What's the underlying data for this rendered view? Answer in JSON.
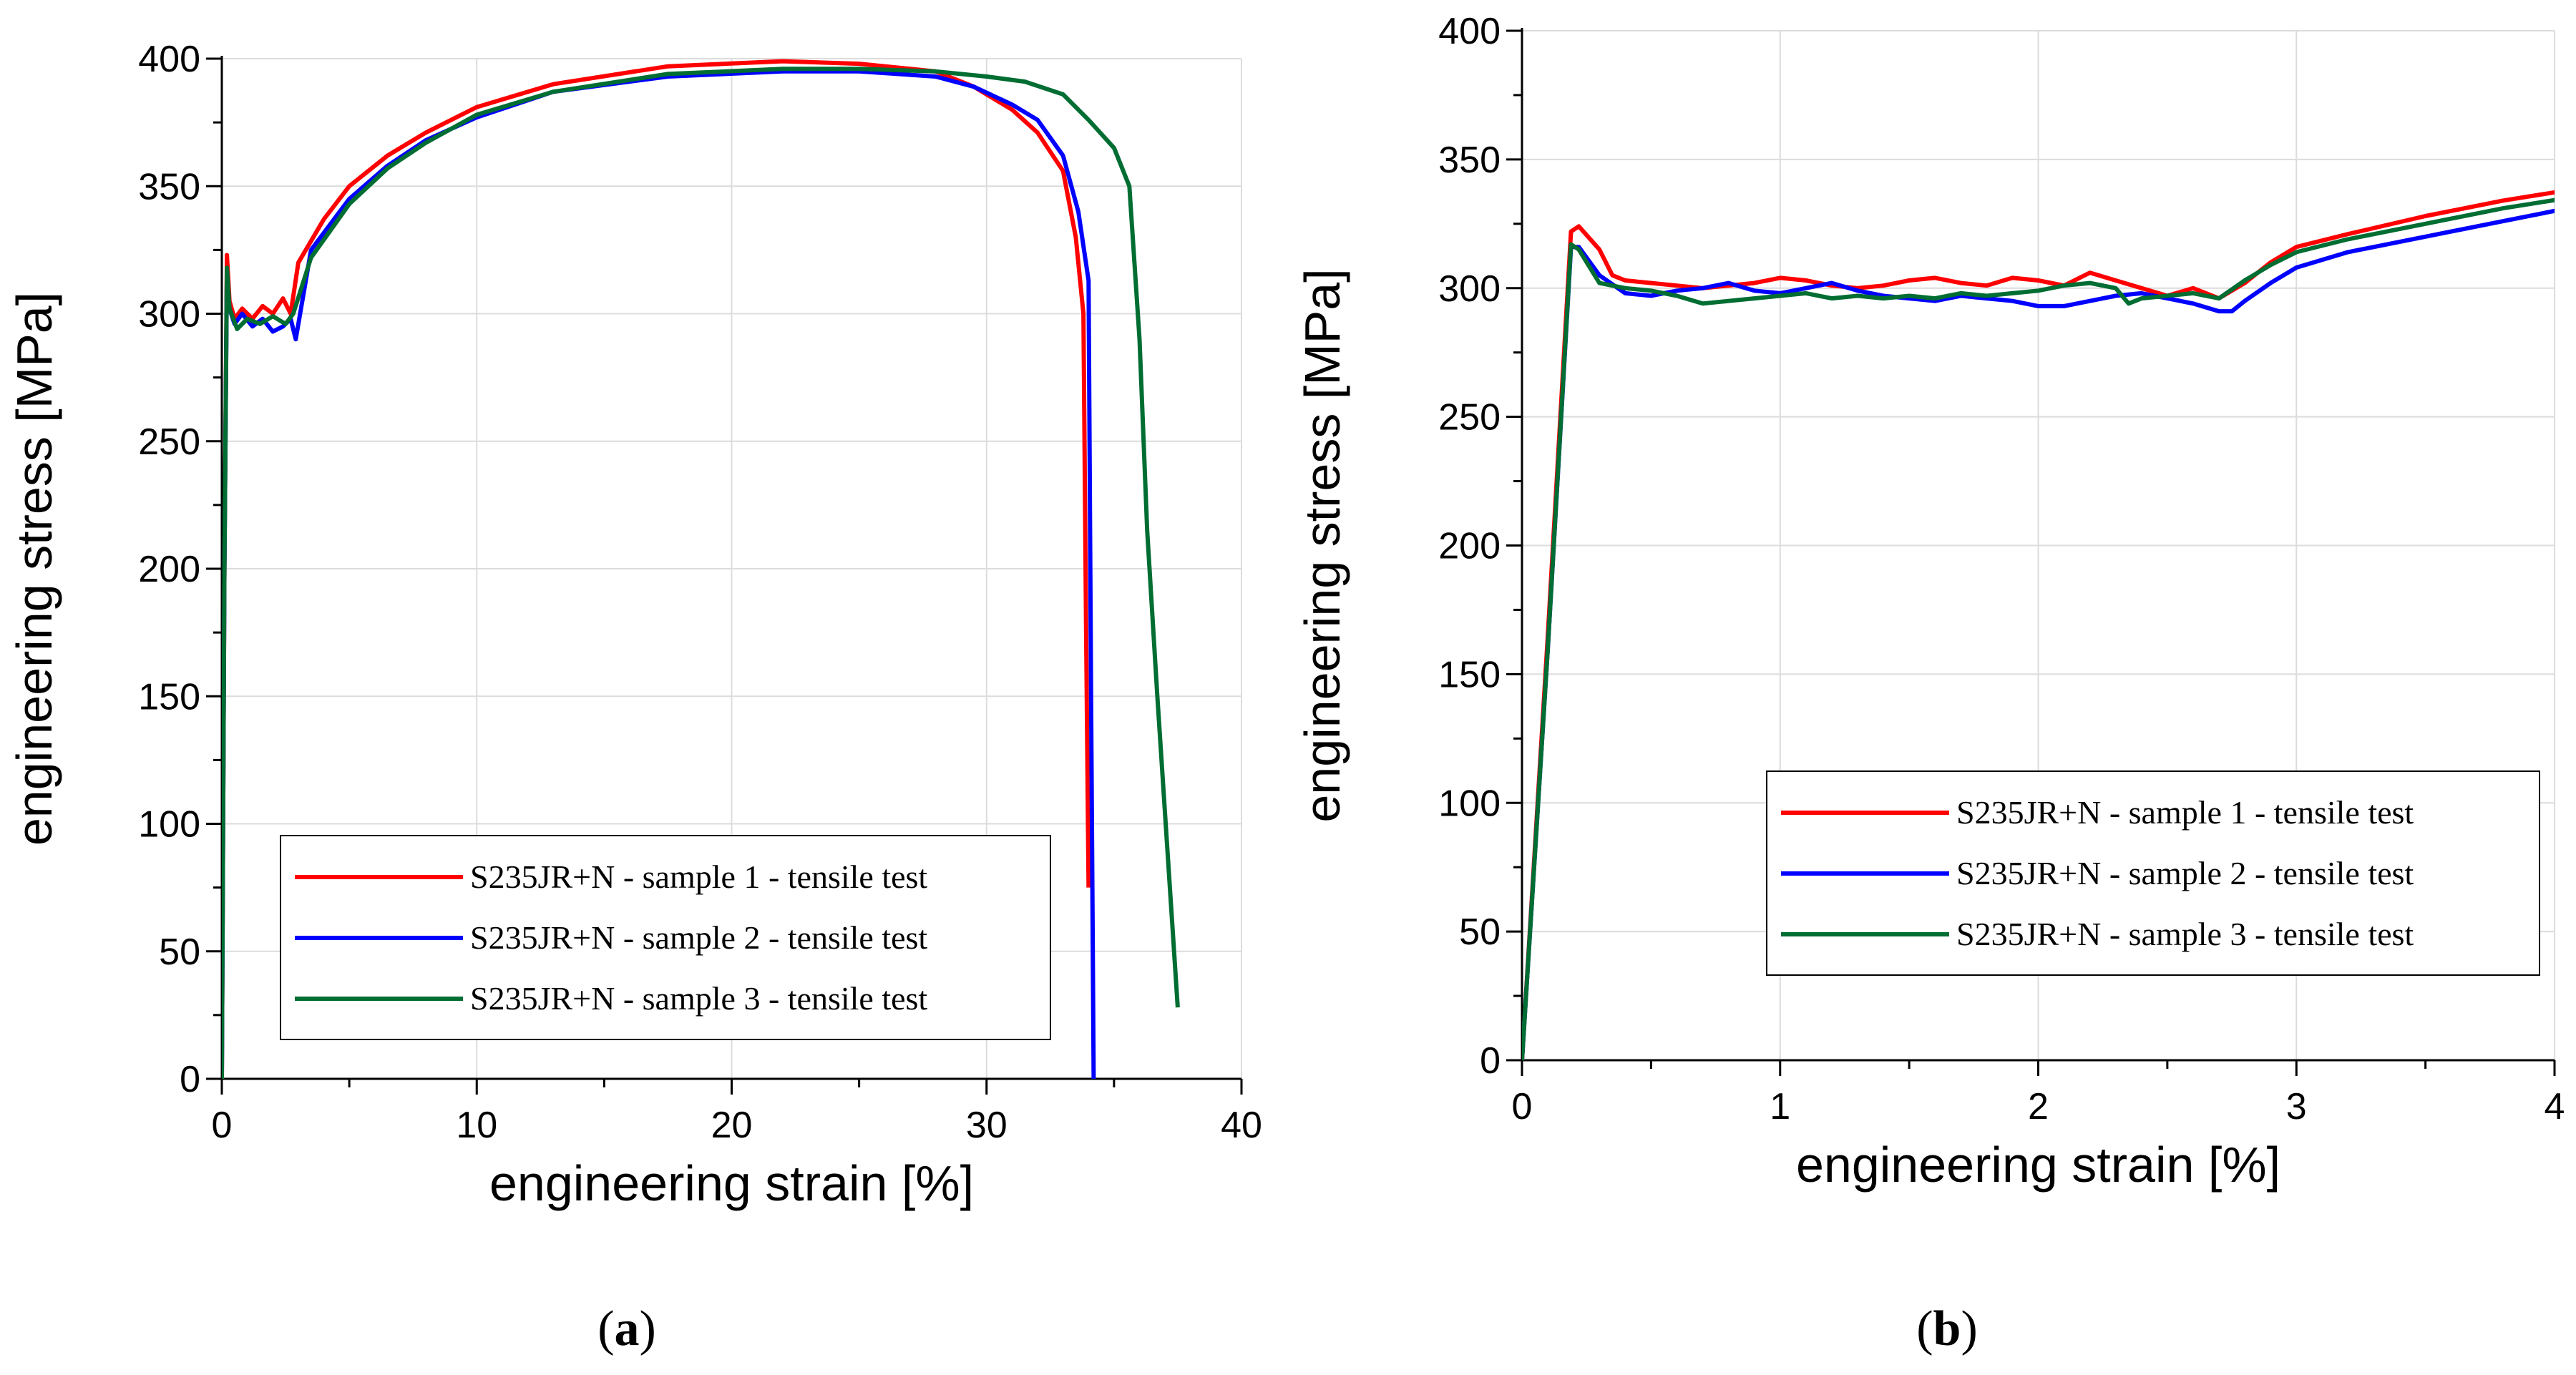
{
  "colors": {
    "sample1": "#ff0000",
    "sample2": "#0000ff",
    "sample3": "#006d32",
    "grid": "#dcdcdc",
    "axis": "#000000"
  },
  "chart_data": [
    {
      "type": "line",
      "caption_prefix": "(",
      "caption_letter": "a",
      "caption_suffix": ")",
      "xlabel": "engineering strain [%]",
      "ylabel": "engineering stress [MPa]",
      "xlim": [
        0,
        40
      ],
      "ylim": [
        0,
        400
      ],
      "xticks": [
        0,
        10,
        20,
        30,
        40
      ],
      "yticks": [
        0,
        50,
        100,
        150,
        200,
        250,
        300,
        350,
        400
      ],
      "grid": true,
      "legend_position": "bottom-center",
      "series": [
        {
          "name": "S235JR+N - sample 1 - tensile test",
          "x": [
            0,
            0.1,
            0.2,
            0.3,
            0.5,
            0.8,
            1.2,
            1.6,
            2.0,
            2.4,
            2.7,
            3.0,
            4.0,
            5.0,
            6.5,
            8.0,
            10.0,
            13.0,
            17.5,
            22.0,
            25.0,
            28.0,
            29.5,
            31.0,
            32.0,
            33.0,
            33.5,
            33.8,
            33.9,
            34.0
          ],
          "y": [
            0,
            200,
            323,
            305,
            298,
            302,
            298,
            303,
            300,
            306,
            300,
            320,
            337,
            350,
            362,
            371,
            381,
            390,
            397,
            399,
            398,
            395,
            389,
            380,
            371,
            356,
            330,
            300,
            180,
            75
          ]
        },
        {
          "name": "S235JR+N - sample 2 - tensile test",
          "x": [
            0,
            0.1,
            0.2,
            0.3,
            0.5,
            0.8,
            1.2,
            1.6,
            2.0,
            2.4,
            2.7,
            2.9,
            3.5,
            5.0,
            6.5,
            8.0,
            10.0,
            13.0,
            17.5,
            22.0,
            25.0,
            28.0,
            29.5,
            31.0,
            32.0,
            33.0,
            33.6,
            34.0,
            34.1,
            34.2
          ],
          "y": [
            0,
            200,
            316,
            302,
            296,
            300,
            295,
            298,
            293,
            295,
            298,
            290,
            325,
            345,
            358,
            368,
            377,
            387,
            393,
            395,
            395,
            393,
            389,
            382,
            376,
            362,
            340,
            313,
            150,
            0
          ]
        },
        {
          "name": "S235JR+N - sample 3 - tensile test",
          "x": [
            0,
            0.1,
            0.2,
            0.3,
            0.6,
            1.0,
            1.5,
            2.0,
            2.5,
            2.8,
            3.5,
            5.0,
            6.5,
            8.0,
            10.0,
            13.0,
            17.5,
            22.0,
            25.0,
            28.0,
            30.0,
            31.5,
            33.0,
            34.0,
            35.0,
            35.6,
            36.0,
            36.3,
            36.7,
            37.5
          ],
          "y": [
            0,
            200,
            318,
            302,
            294,
            298,
            296,
            299,
            296,
            300,
            322,
            343,
            357,
            367,
            378,
            387,
            394,
            396,
            396,
            395,
            393,
            391,
            386,
            376,
            365,
            350,
            290,
            215,
            150,
            28
          ]
        }
      ]
    },
    {
      "type": "line",
      "caption_prefix": "(",
      "caption_letter": "b",
      "caption_suffix": ")",
      "xlabel": "engineering strain [%]",
      "ylabel": "engineering stress [MPa]",
      "xlim": [
        0,
        4
      ],
      "ylim": [
        0,
        400
      ],
      "xticks": [
        0,
        1,
        2,
        3,
        4
      ],
      "yticks": [
        0,
        50,
        100,
        150,
        200,
        250,
        300,
        350,
        400
      ],
      "grid": true,
      "legend_position": "center-right",
      "series": [
        {
          "name": "S235JR+N - sample 1 - tensile test",
          "x": [
            0,
            0.1,
            0.19,
            0.22,
            0.3,
            0.35,
            0.4,
            0.5,
            0.6,
            0.7,
            0.8,
            0.9,
            1.0,
            1.1,
            1.2,
            1.3,
            1.4,
            1.5,
            1.6,
            1.7,
            1.8,
            1.9,
            2.0,
            2.1,
            2.2,
            2.3,
            2.4,
            2.5,
            2.6,
            2.7,
            2.8,
            2.9,
            3.0,
            3.2,
            3.5,
            3.8,
            4.05
          ],
          "y": [
            0,
            165,
            322,
            324,
            315,
            305,
            303,
            302,
            301,
            300,
            301,
            302,
            304,
            303,
            301,
            300,
            301,
            303,
            304,
            302,
            301,
            304,
            303,
            301,
            306,
            303,
            300,
            297,
            300,
            296,
            302,
            310,
            316,
            321,
            328,
            334,
            338
          ]
        },
        {
          "name": "S235JR+N - sample 2 - tensile test",
          "x": [
            0,
            0.1,
            0.19,
            0.22,
            0.3,
            0.4,
            0.5,
            0.6,
            0.7,
            0.8,
            0.9,
            1.0,
            1.1,
            1.2,
            1.3,
            1.4,
            1.5,
            1.6,
            1.7,
            1.8,
            1.9,
            2.0,
            2.1,
            2.2,
            2.3,
            2.4,
            2.5,
            2.6,
            2.7,
            2.75,
            2.8,
            2.9,
            3.0,
            3.2,
            3.5,
            3.8,
            4.05
          ],
          "y": [
            0,
            160,
            316,
            316,
            305,
            298,
            297,
            299,
            300,
            302,
            299,
            298,
            300,
            302,
            299,
            297,
            296,
            295,
            297,
            296,
            295,
            293,
            293,
            295,
            297,
            298,
            296,
            294,
            291,
            291,
            295,
            302,
            308,
            314,
            320,
            326,
            331
          ]
        },
        {
          "name": "S235JR+N - sample 3 - tensile test",
          "x": [
            0,
            0.1,
            0.19,
            0.22,
            0.3,
            0.4,
            0.5,
            0.6,
            0.7,
            0.8,
            0.9,
            1.0,
            1.1,
            1.2,
            1.3,
            1.4,
            1.5,
            1.6,
            1.7,
            1.8,
            1.9,
            2.0,
            2.1,
            2.2,
            2.3,
            2.35,
            2.4,
            2.5,
            2.6,
            2.7,
            2.8,
            2.9,
            3.0,
            3.2,
            3.5,
            3.8,
            4.05
          ],
          "y": [
            0,
            160,
            317,
            315,
            302,
            300,
            299,
            297,
            294,
            295,
            296,
            297,
            298,
            296,
            297,
            296,
            297,
            296,
            298,
            297,
            298,
            299,
            301,
            302,
            300,
            294,
            296,
            297,
            298,
            296,
            303,
            309,
            314,
            319,
            325,
            331,
            335
          ]
        }
      ]
    }
  ]
}
